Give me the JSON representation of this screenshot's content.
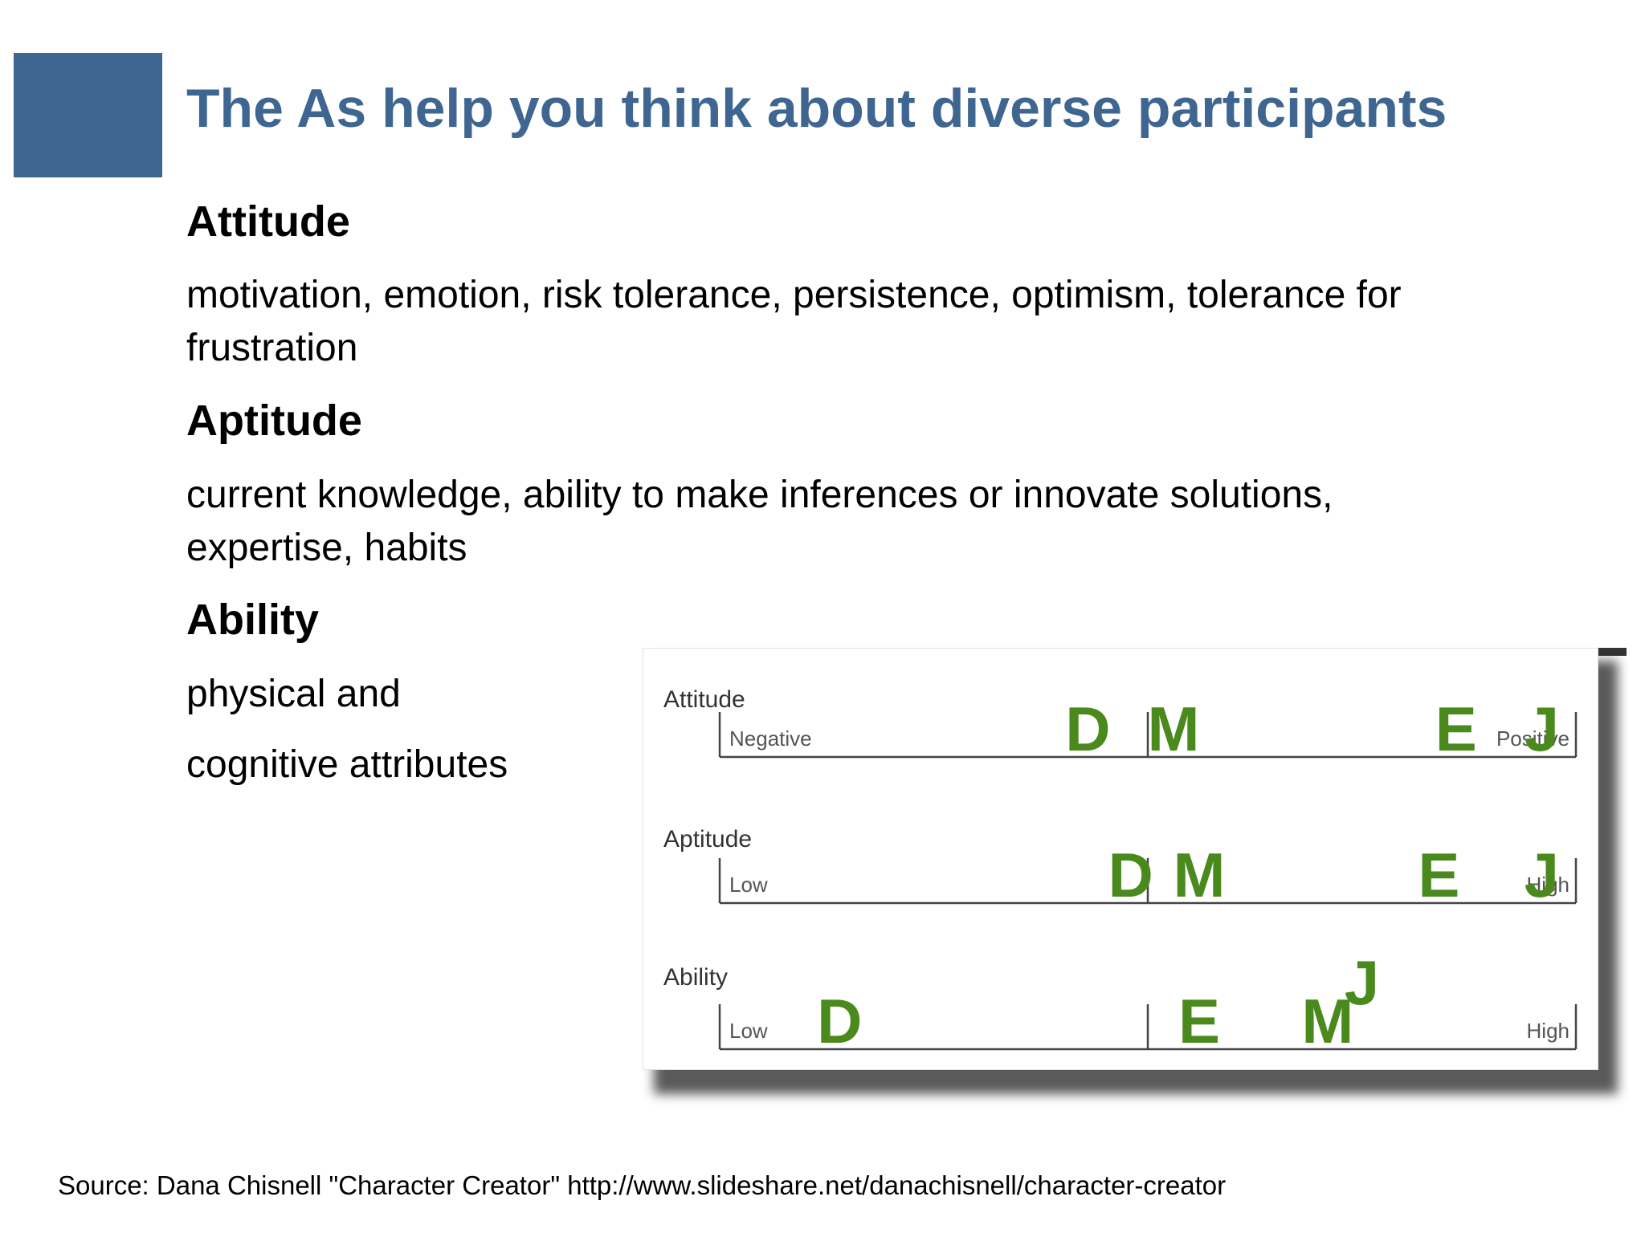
{
  "slide": {
    "title": "The As help you think about diverse participants",
    "accent_color": "#3e6690",
    "sections": [
      {
        "heading": "Attitude",
        "text": "motivation, emotion, risk tolerance, persistence, optimism, tolerance for frustration"
      },
      {
        "heading": "Aptitude",
        "text": "current knowledge, ability to make inferences or innovate solutions, expertise, habits"
      },
      {
        "heading": "Ability",
        "text_line1": "physical and",
        "text_line2": "cognitive attributes"
      }
    ],
    "source": "Source: Dana Chisnell \"Character Creator\" http://www.slideshare.net/danachisnell/character-creator"
  },
  "chart_data": {
    "type": "scatter",
    "marker_color": "#4a8a1c",
    "scale": [
      0,
      1
    ],
    "rows": [
      {
        "label": "Attitude",
        "low_label": "Negative",
        "high_label": "Positive",
        "points": [
          {
            "name": "D",
            "x": 0.43,
            "lift": 0
          },
          {
            "name": "M",
            "x": 0.53,
            "lift": 0
          },
          {
            "name": "E",
            "x": 0.86,
            "lift": 0
          },
          {
            "name": "J",
            "x": 0.96,
            "lift": 0
          }
        ]
      },
      {
        "label": "Aptitude",
        "low_label": "Low",
        "high_label": "High",
        "points": [
          {
            "name": "D",
            "x": 0.48,
            "lift": 0
          },
          {
            "name": "M",
            "x": 0.56,
            "lift": 0
          },
          {
            "name": "E",
            "x": 0.84,
            "lift": 0
          },
          {
            "name": "J",
            "x": 0.96,
            "lift": 0
          }
        ]
      },
      {
        "label": "Ability",
        "low_label": "Low",
        "high_label": "High",
        "points": [
          {
            "name": "D",
            "x": 0.14,
            "lift": 0
          },
          {
            "name": "E",
            "x": 0.56,
            "lift": 0
          },
          {
            "name": "M",
            "x": 0.71,
            "lift": 0
          },
          {
            "name": "J",
            "x": 0.75,
            "lift": 1
          }
        ]
      }
    ]
  }
}
